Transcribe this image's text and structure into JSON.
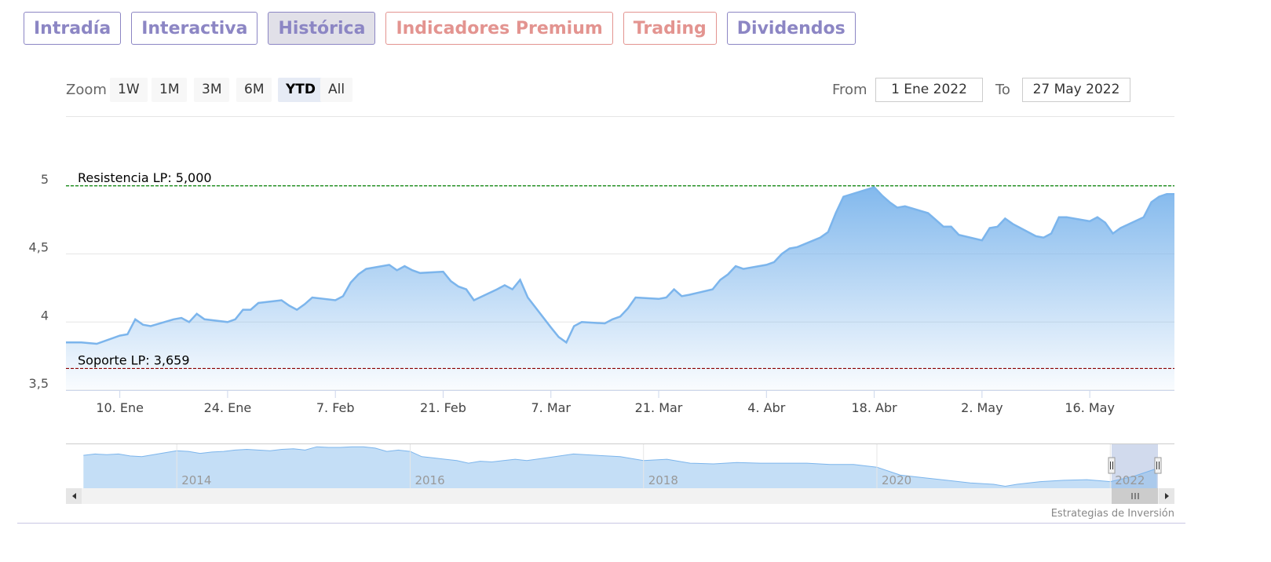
{
  "tabs": [
    {
      "label": "Intradía",
      "color": "#8c86c4"
    },
    {
      "label": "Interactiva",
      "color": "#8c86c4"
    },
    {
      "label": "Histórica",
      "color": "#8c86c4",
      "selected": true
    },
    {
      "label": "Indicadores Premium",
      "color": "#e39490"
    },
    {
      "label": "Trading",
      "color": "#e39490"
    },
    {
      "label": "Dividendos",
      "color": "#8c86c4"
    }
  ],
  "range_selector": {
    "zoom_label": "Zoom",
    "buttons": [
      "1W",
      "1M",
      "3M",
      "6M",
      "YTD",
      "All"
    ],
    "selected": 4,
    "from_label": "From",
    "from": "1 Ene 2022",
    "to_label": "To",
    "to": "27 May 2022"
  },
  "chart_data": [
    {
      "type": "area",
      "color": "#7cb5ec",
      "x": [
        "2022-01-03",
        "2022-01-04",
        "2022-01-05",
        "2022-01-06",
        "2022-01-07",
        "2022-01-10",
        "2022-01-11",
        "2022-01-12",
        "2022-01-13",
        "2022-01-14",
        "2022-01-17",
        "2022-01-18",
        "2022-01-19",
        "2022-01-20",
        "2022-01-21",
        "2022-01-24",
        "2022-01-25",
        "2022-01-26",
        "2022-01-27",
        "2022-01-28",
        "2022-01-31",
        "2022-02-01",
        "2022-02-02",
        "2022-02-03",
        "2022-02-04",
        "2022-02-07",
        "2022-02-08",
        "2022-02-09",
        "2022-02-10",
        "2022-02-11",
        "2022-02-14",
        "2022-02-15",
        "2022-02-16",
        "2022-02-17",
        "2022-02-18",
        "2022-02-21",
        "2022-02-22",
        "2022-02-23",
        "2022-02-24",
        "2022-02-25",
        "2022-02-28",
        "2022-03-01",
        "2022-03-02",
        "2022-03-03",
        "2022-03-04",
        "2022-03-07",
        "2022-03-08",
        "2022-03-09",
        "2022-03-10",
        "2022-03-11",
        "2022-03-14",
        "2022-03-15",
        "2022-03-16",
        "2022-03-17",
        "2022-03-18",
        "2022-03-21",
        "2022-03-22",
        "2022-03-23",
        "2022-03-24",
        "2022-03-25",
        "2022-03-28",
        "2022-03-29",
        "2022-03-30",
        "2022-03-31",
        "2022-04-01",
        "2022-04-04",
        "2022-04-05",
        "2022-04-06",
        "2022-04-07",
        "2022-04-08",
        "2022-04-11",
        "2022-04-12",
        "2022-04-13",
        "2022-04-14",
        "2022-04-18",
        "2022-04-19",
        "2022-04-20",
        "2022-04-21",
        "2022-04-22",
        "2022-04-25",
        "2022-04-26",
        "2022-04-27",
        "2022-04-28",
        "2022-04-29",
        "2022-05-02",
        "2022-05-03",
        "2022-05-04",
        "2022-05-05",
        "2022-05-06",
        "2022-05-09",
        "2022-05-10",
        "2022-05-11",
        "2022-05-12",
        "2022-05-13",
        "2022-05-16",
        "2022-05-17",
        "2022-05-18",
        "2022-05-19",
        "2022-05-20",
        "2022-05-23",
        "2022-05-24",
        "2022-05-25",
        "2022-05-26",
        "2022-05-27"
      ],
      "values": [
        3.85,
        3.85,
        3.85,
        3.845,
        3.84,
        3.9,
        3.91,
        4.02,
        3.98,
        3.97,
        4.02,
        4.03,
        4.0,
        4.06,
        4.02,
        4.0,
        4.02,
        4.09,
        4.09,
        4.14,
        4.16,
        4.12,
        4.09,
        4.13,
        4.18,
        4.16,
        4.19,
        4.29,
        4.35,
        4.39,
        4.42,
        4.38,
        4.41,
        4.38,
        4.36,
        4.37,
        4.3,
        4.26,
        4.24,
        4.16,
        4.24,
        4.27,
        4.24,
        4.31,
        4.18,
        3.96,
        3.89,
        3.85,
        3.97,
        4.0,
        3.99,
        4.02,
        4.04,
        4.1,
        4.18,
        4.17,
        4.18,
        4.24,
        4.19,
        4.2,
        4.24,
        4.31,
        4.35,
        4.41,
        4.39,
        4.42,
        4.44,
        4.5,
        4.54,
        4.55,
        4.62,
        4.66,
        4.8,
        4.92,
        4.99,
        4.93,
        4.88,
        4.84,
        4.85,
        4.8,
        4.75,
        4.7,
        4.7,
        4.64,
        4.6,
        4.69,
        4.7,
        4.76,
        4.72,
        4.63,
        4.62,
        4.65,
        4.77,
        4.77,
        4.74,
        4.77,
        4.73,
        4.65,
        4.69,
        4.77,
        4.88,
        4.92,
        4.94,
        4.94
      ],
      "xlim": [
        "2022-01-03",
        "2022-05-27"
      ],
      "xticks": [
        {
          "value": "2022-01-10",
          "label": "10. Ene"
        },
        {
          "value": "2022-01-24",
          "label": "24. Ene"
        },
        {
          "value": "2022-02-07",
          "label": "7. Feb"
        },
        {
          "value": "2022-02-21",
          "label": "21. Feb"
        },
        {
          "value": "2022-03-07",
          "label": "7. Mar"
        },
        {
          "value": "2022-03-21",
          "label": "21. Mar"
        },
        {
          "value": "2022-04-04",
          "label": "4. Abr"
        },
        {
          "value": "2022-04-18",
          "label": "18. Abr"
        },
        {
          "value": "2022-05-02",
          "label": "2. May"
        },
        {
          "value": "2022-05-16",
          "label": "16. May"
        }
      ],
      "ylim": [
        3.5,
        5.5
      ],
      "yticks": [
        {
          "value": 3.5,
          "label": "3,5"
        },
        4,
        {
          "value": 4.5,
          "label": "4,5"
        },
        5
      ],
      "grid": true,
      "plot_lines": [
        {
          "value": 5.0,
          "label": "Resistencia LP: 5,000",
          "color": "#008000"
        },
        {
          "value": 3.659,
          "label": "Soporte LP: 3,659",
          "color": "#8b0000"
        }
      ]
    },
    {
      "type": "area",
      "color": "#7cb5ec",
      "x": [
        2013.2,
        2013.3,
        2013.4,
        2013.5,
        2013.6,
        2013.7,
        2013.8,
        2013.9,
        2014.0,
        2014.1,
        2014.2,
        2014.3,
        2014.4,
        2014.5,
        2014.6,
        2014.7,
        2014.8,
        2014.9,
        2015.0,
        2015.1,
        2015.2,
        2015.3,
        2015.4,
        2015.5,
        2015.6,
        2015.7,
        2015.8,
        2015.9,
        2016.0,
        2016.1,
        2016.2,
        2016.3,
        2016.4,
        2016.5,
        2016.6,
        2016.7,
        2016.8,
        2016.9,
        2017.0,
        2017.2,
        2017.4,
        2017.6,
        2017.8,
        2018.0,
        2018.2,
        2018.4,
        2018.6,
        2018.8,
        2019.0,
        2019.2,
        2019.4,
        2019.6,
        2019.8,
        2020.0,
        2020.2,
        2020.4,
        2020.6,
        2020.8,
        2021.0,
        2021.1,
        2021.2,
        2021.4,
        2021.6,
        2021.8,
        2022.0,
        2022.2,
        2022.4
      ],
      "values": [
        5.9,
        6.0,
        5.95,
        6.0,
        5.85,
        5.8,
        5.95,
        6.1,
        6.25,
        6.2,
        6.05,
        6.15,
        6.2,
        6.3,
        6.35,
        6.3,
        6.25,
        6.35,
        6.4,
        6.3,
        6.55,
        6.5,
        6.5,
        6.55,
        6.55,
        6.45,
        6.2,
        6.3,
        6.2,
        5.8,
        5.7,
        5.6,
        5.5,
        5.3,
        5.45,
        5.4,
        5.5,
        5.6,
        5.5,
        5.75,
        6.0,
        5.9,
        5.8,
        5.5,
        5.6,
        5.3,
        5.25,
        5.35,
        5.3,
        5.3,
        5.3,
        5.2,
        5.2,
        5.0,
        4.4,
        4.2,
        4.0,
        3.8,
        3.7,
        3.55,
        3.7,
        3.9,
        4.0,
        4.05,
        3.9,
        4.3,
        4.9
      ],
      "xlim": [
        2013.05,
        2022.55
      ],
      "xticks": [
        2014,
        2016,
        2018,
        2020,
        2022
      ],
      "ylim": [
        3.4,
        6.8
      ],
      "grid": true
    }
  ],
  "credits": "Estrategias de Inversión"
}
